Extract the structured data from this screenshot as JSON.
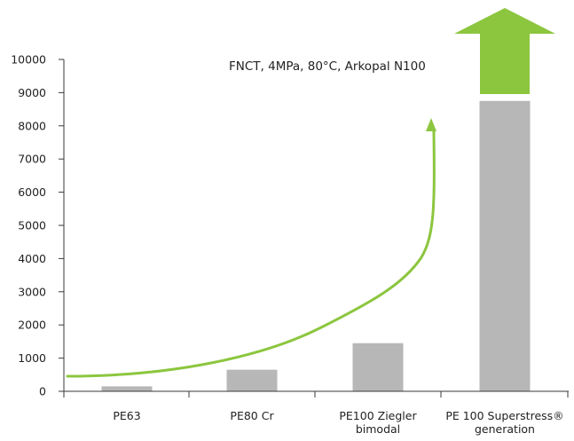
{
  "chart_data": {
    "type": "bar",
    "title": "FNCT, 4MPa, 80°C, Arkopal N100",
    "categories": [
      [
        "PE63"
      ],
      [
        "PE80 Cr"
      ],
      [
        "PE100 Ziegler",
        "bimodal"
      ],
      [
        "PE 100 Superstress®",
        "generation"
      ]
    ],
    "values": [
      150,
      650,
      1450,
      8750
    ],
    "yticks": [
      0,
      1000,
      2000,
      3000,
      4000,
      5000,
      6000,
      7000,
      8000,
      9000,
      10000
    ],
    "ylim": [
      0,
      10000
    ],
    "xlabel": "",
    "ylabel": "",
    "grid": false,
    "colors": {
      "bar": "#b7b7b8",
      "trend": "#8cc63f",
      "axis": "#3a3a3a",
      "text": "#222222"
    },
    "annotations": [
      {
        "type": "curved-arrow",
        "meaning": "increasing trend"
      },
      {
        "type": "upward-arrow",
        "meaning": "value exceeds top of scale",
        "category_index": 3
      }
    ]
  }
}
